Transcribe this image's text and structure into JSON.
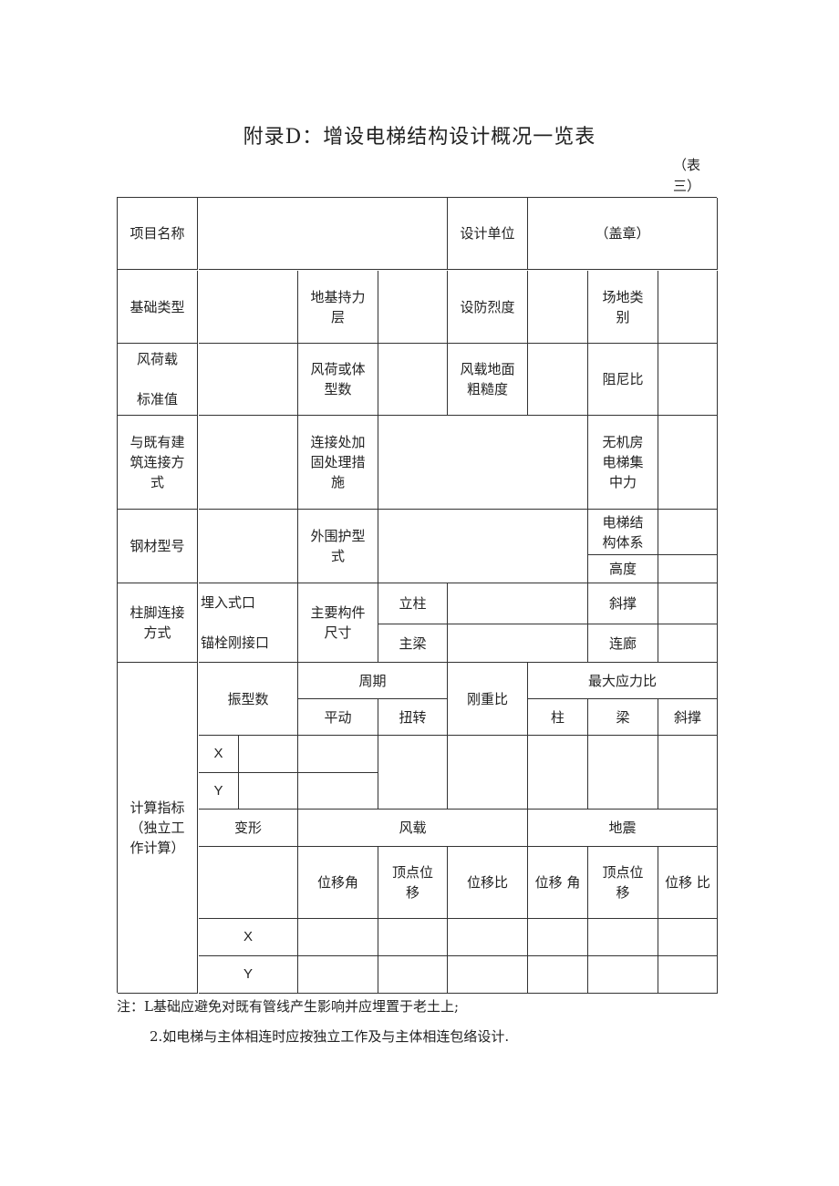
{
  "title": "附录D：增设电梯结构设计概况一览表",
  "table_number": "（表三）",
  "table": {
    "cells": [
      "项目名称",
      "",
      "设计单位",
      "（盖章）",
      "基础类型",
      "",
      "地基持力\n层",
      "",
      "设防烈度",
      "",
      "场地类\n别",
      "",
      "风荷载\n\n标准值",
      "",
      "风荷或体\n型数",
      "",
      "风载地面\n粗糙度",
      "",
      "阻尼比",
      "",
      "与既有建\n筑连接方\n式",
      "",
      "连接处加\n固处理措\n施",
      "",
      "无机房\n电梯集\n中力",
      "",
      "钢材型号",
      "",
      "外围护型\n式",
      "",
      "电梯结\n构体系",
      "",
      "高度",
      "",
      "柱脚连接\n方式",
      "埋入式口\n\n锚栓刚接口",
      "主要构件\n尺寸",
      "立柱",
      "",
      "斜撑",
      "",
      "主梁",
      "",
      "连廊",
      "",
      "计算指标\n（独立工\n作计算）",
      "振型数",
      "周期",
      "平动",
      "扭转",
      "刚重比",
      "最大应力比",
      "柱",
      "梁",
      "斜撑",
      "X",
      "",
      "",
      "Y",
      "",
      "",
      "",
      "",
      "",
      "",
      "",
      "变形",
      "风载",
      "地震",
      "",
      "位移角",
      "顶点位\n移",
      "位移比",
      "位移 角",
      "顶点位\n移",
      "位移 比",
      "X",
      "",
      "",
      "",
      "",
      "",
      "",
      "Y",
      "",
      "",
      "",
      "",
      "",
      ""
    ]
  },
  "notes": [
    "注：L基础应避免对既有管线产生影响并应埋置于老土上;",
    "2.如电梯与主体相连时应按独立工作及与主体相连包络设计."
  ]
}
